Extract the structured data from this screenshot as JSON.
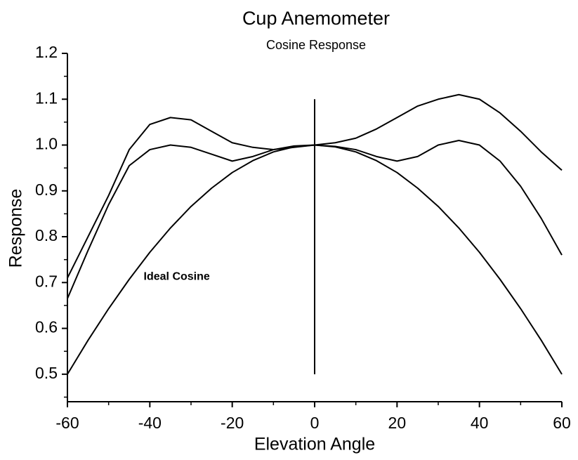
{
  "chart_data": {
    "type": "line",
    "title": "Cup Anemometer",
    "subtitle": "Cosine Response",
    "x_label": "Elevation Angle",
    "y_label": "Response",
    "x": [
      -60,
      -55,
      -50,
      -45,
      -40,
      -35,
      -30,
      -25,
      -20,
      -15,
      -10,
      -5,
      0,
      5,
      10,
      15,
      20,
      25,
      30,
      35,
      40,
      45,
      50,
      55,
      60
    ],
    "series": [
      {
        "color": "#000000",
        "values": [
          0.71,
          0.8,
          0.89,
          0.99,
          1.045,
          1.06,
          1.055,
          1.03,
          1.005,
          0.995,
          0.99,
          0.995,
          1.0,
          1.005,
          1.015,
          1.035,
          1.06,
          1.085,
          1.1,
          1.11,
          1.1,
          1.07,
          1.03,
          0.985,
          0.945
        ]
      },
      {
        "color": "#000000",
        "values": [
          0.665,
          0.77,
          0.87,
          0.955,
          0.99,
          1.0,
          0.995,
          0.98,
          0.965,
          0.975,
          0.99,
          0.998,
          1.0,
          0.997,
          0.99,
          0.975,
          0.965,
          0.975,
          1.0,
          1.01,
          1.0,
          0.965,
          0.91,
          0.84,
          0.76
        ]
      },
      {
        "color": "#000000",
        "values": [
          0.5,
          0.574,
          0.643,
          0.707,
          0.766,
          0.819,
          0.866,
          0.906,
          0.94,
          0.966,
          0.985,
          0.996,
          1.0,
          0.996,
          0.985,
          0.966,
          0.94,
          0.906,
          0.866,
          0.819,
          0.766,
          0.707,
          0.643,
          0.574,
          0.5
        ]
      }
    ],
    "annotation": {
      "text": "Ideal Cosine",
      "x": -41.5,
      "y": 0.712
    },
    "reference_line": {
      "x": 0,
      "y": [
        0.5,
        1.1
      ]
    },
    "xlim": [
      -60,
      60
    ],
    "ylim": [
      0.44,
      1.2
    ],
    "xticks": [
      -60,
      -40,
      -20,
      0,
      20,
      40,
      60
    ],
    "xminor": [
      -50,
      -30,
      -10,
      10,
      30,
      50
    ],
    "yticks": [
      0.5,
      0.6,
      0.7,
      0.8,
      0.9,
      {
        "value": 1,
        "label": "1.0"
      },
      1.1,
      {
        "value": 1.2,
        "label": "1.2"
      }
    ],
    "yminor": [
      0.45,
      0.55,
      0.65,
      0.75,
      0.85,
      0.95,
      1.05,
      1.15
    ],
    "grid": false
  }
}
